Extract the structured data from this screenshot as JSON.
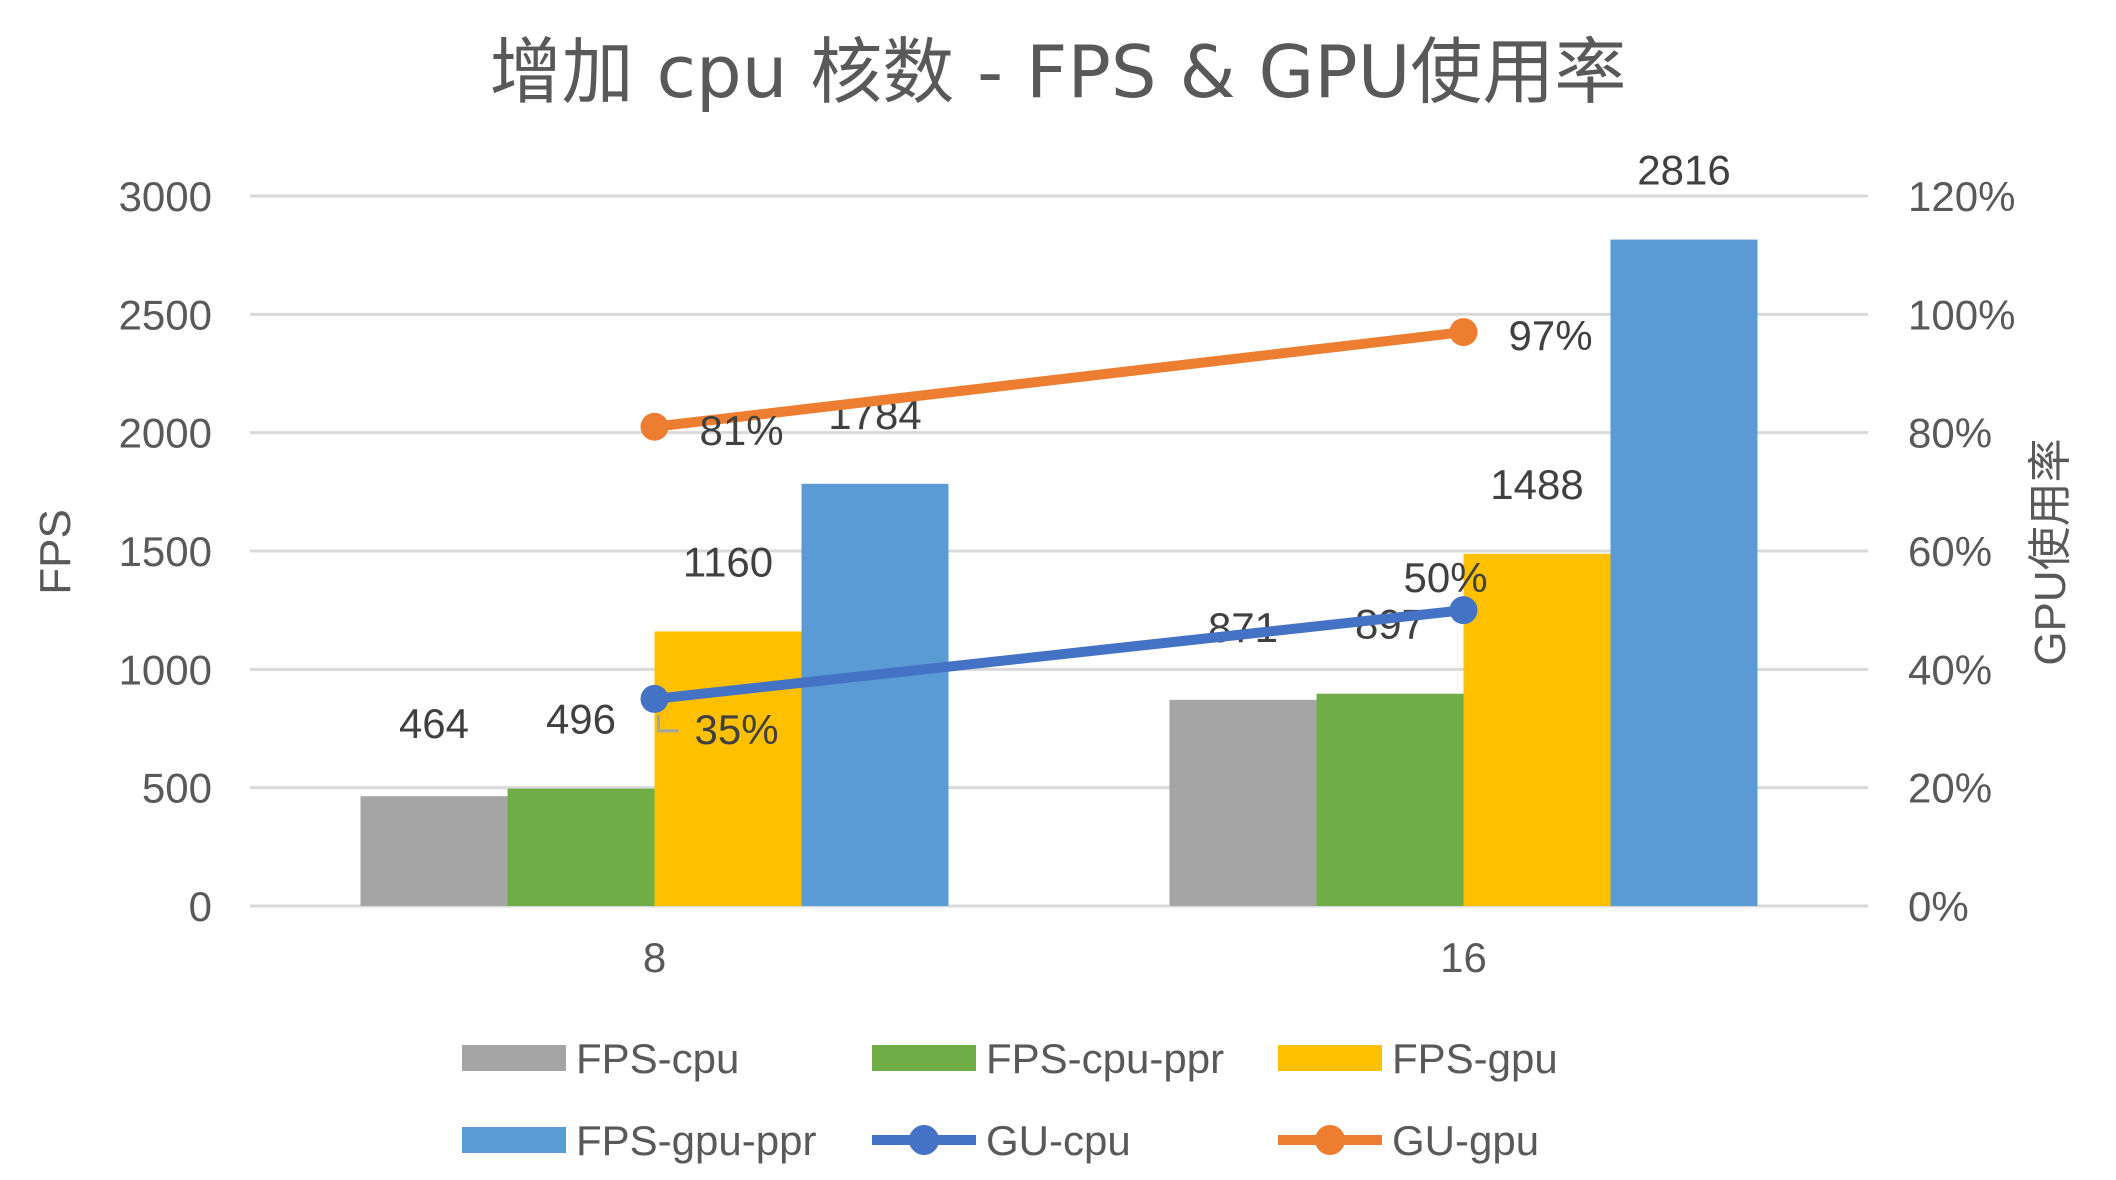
{
  "chart_data": {
    "type": "bar",
    "title": "增加 cpu 核数 - FPS & GPU使用率",
    "categories": [
      "8",
      "16"
    ],
    "ylabel": "FPS",
    "y2label": "GPU使用率",
    "ylim": [
      0,
      3000
    ],
    "yticks": [
      "0",
      "500",
      "1000",
      "1500",
      "2000",
      "2500",
      "3000"
    ],
    "y2lim": [
      0,
      1.2
    ],
    "y2ticks": [
      "0%",
      "20%",
      "40%",
      "60%",
      "80%",
      "100%",
      "120%"
    ],
    "grid": true,
    "legend_position": "bottom",
    "bar_series": [
      {
        "name": "FPS-cpu",
        "color": "#a5a5a5",
        "values": [
          464,
          871
        ],
        "labels": [
          "464",
          "871"
        ]
      },
      {
        "name": "FPS-cpu-ppr",
        "color": "#70ad47",
        "values": [
          496,
          897
        ],
        "labels": [
          "496",
          "897"
        ]
      },
      {
        "name": "FPS-gpu",
        "color": "#ffc000",
        "values": [
          1160,
          1488
        ],
        "labels": [
          "1160",
          "1488"
        ]
      },
      {
        "name": "FPS-gpu-ppr",
        "color": "#5b9bd5",
        "values": [
          1784,
          2816
        ],
        "labels": [
          "1784",
          "2816"
        ]
      }
    ],
    "line_series": [
      {
        "name": "GU-cpu",
        "color": "#4472c4",
        "values": [
          0.35,
          0.5
        ],
        "labels": [
          "35%",
          "50%"
        ]
      },
      {
        "name": "GU-gpu",
        "color": "#ed7d31",
        "values": [
          0.81,
          0.97
        ],
        "labels": [
          "81%",
          "97%"
        ]
      }
    ]
  }
}
